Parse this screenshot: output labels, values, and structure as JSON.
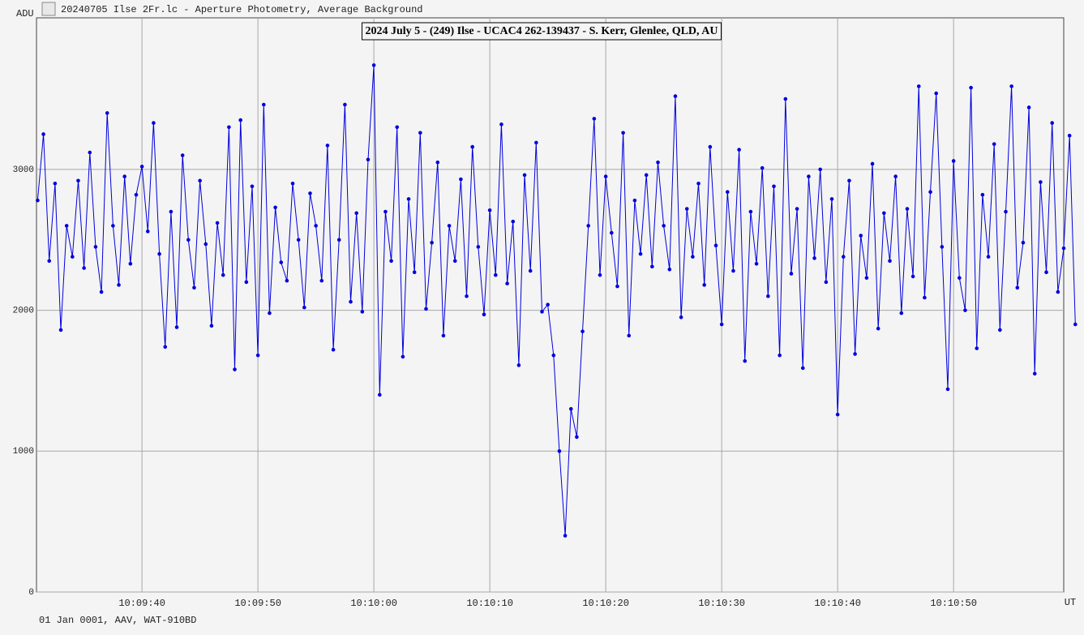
{
  "window_title": "20240705 Ilse 2Fr.lc - Aperture Photometry, Average Background",
  "footer": "01 Jan 0001, AAV, WAT-910BD",
  "chart_data": {
    "type": "line",
    "title": "2024 July 5 - (249) Ilse - UCAC4 262-139437 - S. Kerr, Glenlee, QLD, AU",
    "y_label": "ADU",
    "x_label": "UT",
    "grid": true,
    "xlim": [
      36570.9,
      36659.5
    ],
    "ylim": [
      0,
      4076
    ],
    "xticks": [
      {
        "value": 36580,
        "label": "10:09:40"
      },
      {
        "value": 36590,
        "label": "10:09:50"
      },
      {
        "value": 36600,
        "label": "10:10:00"
      },
      {
        "value": 36610,
        "label": "10:10:10"
      },
      {
        "value": 36620,
        "label": "10:10:20"
      },
      {
        "value": 36630,
        "label": "10:10:30"
      },
      {
        "value": 36640,
        "label": "10:10:40"
      },
      {
        "value": 36650,
        "label": "10:10:50"
      }
    ],
    "yticks": [
      0,
      1000,
      2000,
      3000
    ],
    "series": [
      {
        "color": "#0000dd",
        "x": [
          36571,
          36571.5,
          36572,
          36572.5,
          36573,
          36573.5,
          36574,
          36574.5,
          36575,
          36575.5,
          36576,
          36576.5,
          36577,
          36577.5,
          36578,
          36578.5,
          36579,
          36579.5,
          36580,
          36580.5,
          36581,
          36581.5,
          36582,
          36582.5,
          36583,
          36583.5,
          36584,
          36584.5,
          36585,
          36585.5,
          36586,
          36586.5,
          36587,
          36587.5,
          36588,
          36588.5,
          36589,
          36589.5,
          36590,
          36590.5,
          36591,
          36591.5,
          36592,
          36592.5,
          36593,
          36593.5,
          36594,
          36594.5,
          36595,
          36595.5,
          36596,
          36596.5,
          36597,
          36597.5,
          36598,
          36598.5,
          36599,
          36599.5,
          36600,
          36600.5,
          36601,
          36601.5,
          36602,
          36602.5,
          36603,
          36603.5,
          36604,
          36604.5,
          36605,
          36605.5,
          36606,
          36606.5,
          36607,
          36607.5,
          36608,
          36608.5,
          36609,
          36609.5,
          36610,
          36610.5,
          36611,
          36611.5,
          36612,
          36612.5,
          36613,
          36613.5,
          36614,
          36614.5,
          36615,
          36615.5,
          36616,
          36616.5,
          36617,
          36617.5,
          36618,
          36618.5,
          36619,
          36619.5,
          36620,
          36620.5,
          36621,
          36621.5,
          36622,
          36622.5,
          36623,
          36623.5,
          36624,
          36624.5,
          36625,
          36625.5,
          36626,
          36626.5,
          36627,
          36627.5,
          36628,
          36628.5,
          36629,
          36629.5,
          36630,
          36630.5,
          36631,
          36631.5,
          36632,
          36632.5,
          36633,
          36633.5,
          36634,
          36634.5,
          36635,
          36635.5,
          36636,
          36636.5,
          36637,
          36637.5,
          36638,
          36638.5,
          36639,
          36639.5,
          36640,
          36640.5,
          36641,
          36641.5,
          36642,
          36642.5,
          36643,
          36643.5,
          36644,
          36644.5,
          36645,
          36645.5,
          36646,
          36646.5,
          36647,
          36647.5,
          36648,
          36648.5,
          36649,
          36649.5,
          36650,
          36650.5,
          36651,
          36651.5,
          36652,
          36652.5,
          36653,
          36653.5,
          36654,
          36654.5,
          36655,
          36655.5,
          36656,
          36656.5,
          36657,
          36657.5,
          36658,
          36658.5,
          36659,
          36659.5,
          36660,
          36660.5
        ],
        "values": [
          2780,
          3250,
          2350,
          2900,
          1860,
          2600,
          2380,
          2920,
          2300,
          3120,
          2450,
          2130,
          3400,
          2600,
          2180,
          2950,
          2330,
          2820,
          3020,
          2560,
          3330,
          2400,
          1740,
          2700,
          1880,
          3100,
          2500,
          2160,
          2920,
          2470,
          1890,
          2620,
          2250,
          3300,
          1580,
          3350,
          2200,
          2880,
          1680,
          3460,
          1980,
          2730,
          2340,
          2210,
          2900,
          2500,
          2020,
          2830,
          2600,
          2210,
          3170,
          1720,
          2500,
          3460,
          2060,
          2690,
          1990,
          3070,
          3740,
          1400,
          2700,
          2350,
          3300,
          1670,
          2790,
          2270,
          3260,
          2010,
          2480,
          3050,
          1820,
          2600,
          2350,
          2930,
          2100,
          3160,
          2450,
          1970,
          2710,
          2250,
          3320,
          2190,
          2630,
          1610,
          2960,
          2280,
          3190,
          1990,
          2040,
          1680,
          1000,
          400,
          1300,
          1100,
          1850,
          2600,
          3360,
          2250,
          2950,
          2550,
          2170,
          3260,
          1820,
          2780,
          2400,
          2960,
          2310,
          3050,
          2600,
          2290,
          3520,
          1950,
          2720,
          2380,
          2900,
          2180,
          3160,
          2460,
          1900,
          2840,
          2280,
          3140,
          1640,
          2700,
          2330,
          3010,
          2100,
          2880,
          1680,
          3500,
          2260,
          2720,
          1590,
          2950,
          2370,
          3000,
          2200,
          2790,
          1260,
          2380,
          2920,
          1690,
          2530,
          2230,
          3040,
          1870,
          2690,
          2350,
          2950,
          1980,
          2720,
          2240,
          3590,
          2090,
          2840,
          3540,
          2450,
          1440,
          3060,
          2230,
          2000,
          3580,
          1730,
          2820,
          2380,
          3180,
          1860,
          2700,
          3590,
          2160,
          2480,
          3440,
          1550,
          2910,
          2270,
          3330,
          2130,
          2440,
          3240,
          1900
        ]
      }
    ]
  }
}
